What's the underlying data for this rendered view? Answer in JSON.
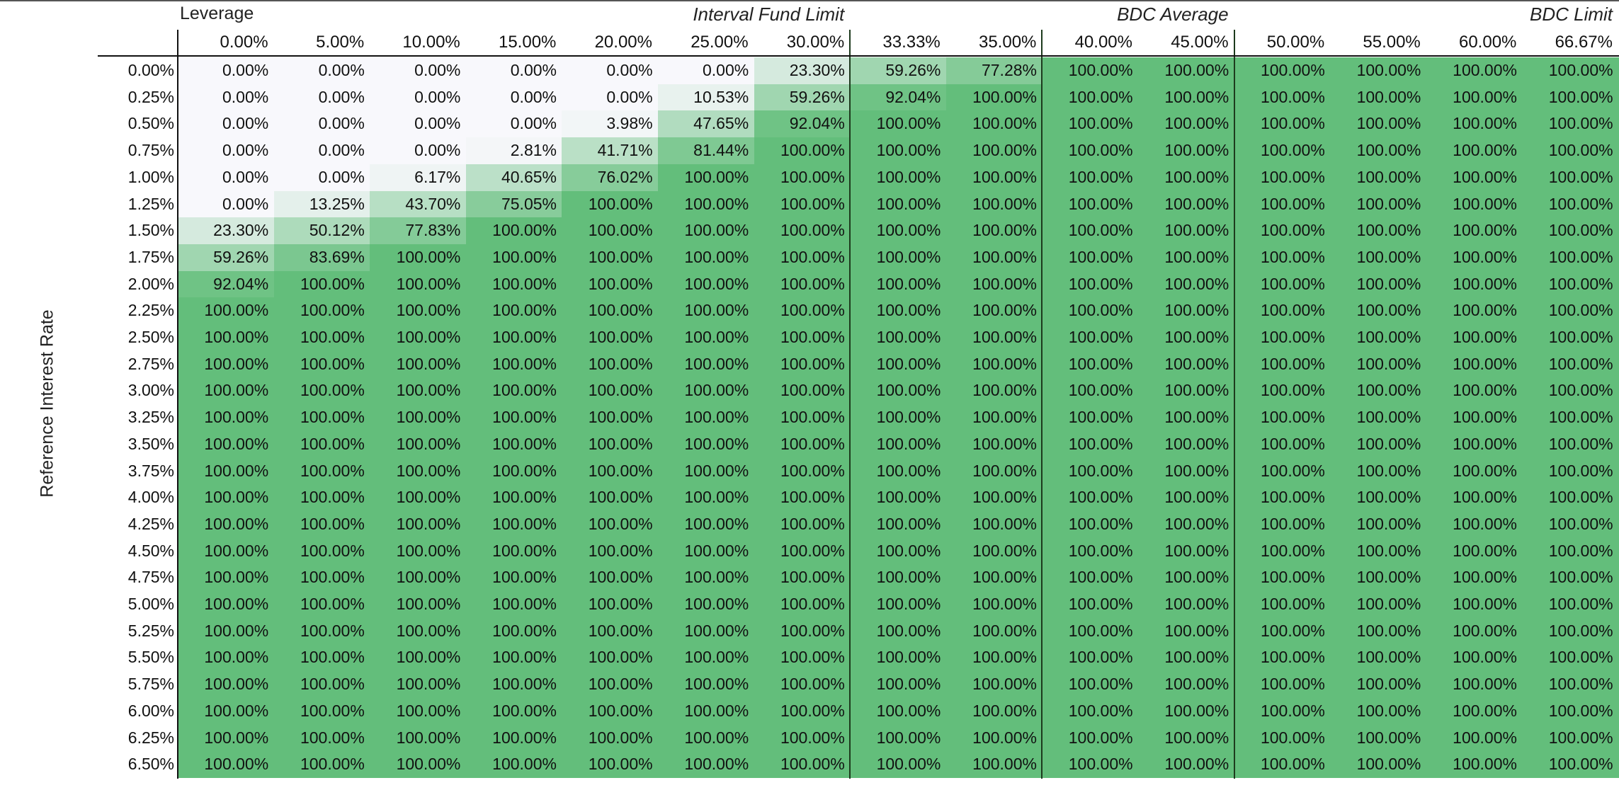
{
  "chart_data": {
    "type": "heatmap",
    "title": "",
    "xlabel": "Leverage",
    "ylabel": "Reference Interest Rate",
    "x_categories": [
      "0.00%",
      "5.00%",
      "10.00%",
      "15.00%",
      "20.00%",
      "25.00%",
      "30.00%",
      "33.33%",
      "35.00%",
      "40.00%",
      "45.00%",
      "50.00%",
      "55.00%",
      "60.00%",
      "66.67%"
    ],
    "y_categories": [
      "0.00%",
      "0.25%",
      "0.50%",
      "0.75%",
      "1.00%",
      "1.25%",
      "1.50%",
      "1.75%",
      "2.00%",
      "2.25%",
      "2.50%",
      "2.75%",
      "3.00%",
      "3.25%",
      "3.50%",
      "3.75%",
      "4.00%",
      "4.25%",
      "4.50%",
      "4.75%",
      "5.00%",
      "5.25%",
      "5.50%",
      "5.75%",
      "6.00%",
      "6.25%",
      "6.50%"
    ],
    "values": [
      [
        0.0,
        0.0,
        0.0,
        0.0,
        0.0,
        0.0,
        23.3,
        59.26,
        77.28,
        100.0,
        100.0,
        100.0,
        100.0,
        100.0,
        100.0
      ],
      [
        0.0,
        0.0,
        0.0,
        0.0,
        0.0,
        10.53,
        59.26,
        92.04,
        100.0,
        100.0,
        100.0,
        100.0,
        100.0,
        100.0,
        100.0
      ],
      [
        0.0,
        0.0,
        0.0,
        0.0,
        3.98,
        47.65,
        92.04,
        100.0,
        100.0,
        100.0,
        100.0,
        100.0,
        100.0,
        100.0,
        100.0
      ],
      [
        0.0,
        0.0,
        0.0,
        2.81,
        41.71,
        81.44,
        100.0,
        100.0,
        100.0,
        100.0,
        100.0,
        100.0,
        100.0,
        100.0,
        100.0
      ],
      [
        0.0,
        0.0,
        6.17,
        40.65,
        76.02,
        100.0,
        100.0,
        100.0,
        100.0,
        100.0,
        100.0,
        100.0,
        100.0,
        100.0,
        100.0
      ],
      [
        0.0,
        13.25,
        43.7,
        75.05,
        100.0,
        100.0,
        100.0,
        100.0,
        100.0,
        100.0,
        100.0,
        100.0,
        100.0,
        100.0,
        100.0
      ],
      [
        23.3,
        50.12,
        77.83,
        100.0,
        100.0,
        100.0,
        100.0,
        100.0,
        100.0,
        100.0,
        100.0,
        100.0,
        100.0,
        100.0,
        100.0
      ],
      [
        59.26,
        83.69,
        100.0,
        100.0,
        100.0,
        100.0,
        100.0,
        100.0,
        100.0,
        100.0,
        100.0,
        100.0,
        100.0,
        100.0,
        100.0
      ],
      [
        92.04,
        100.0,
        100.0,
        100.0,
        100.0,
        100.0,
        100.0,
        100.0,
        100.0,
        100.0,
        100.0,
        100.0,
        100.0,
        100.0,
        100.0
      ],
      [
        100.0,
        100.0,
        100.0,
        100.0,
        100.0,
        100.0,
        100.0,
        100.0,
        100.0,
        100.0,
        100.0,
        100.0,
        100.0,
        100.0,
        100.0
      ],
      [
        100.0,
        100.0,
        100.0,
        100.0,
        100.0,
        100.0,
        100.0,
        100.0,
        100.0,
        100.0,
        100.0,
        100.0,
        100.0,
        100.0,
        100.0
      ],
      [
        100.0,
        100.0,
        100.0,
        100.0,
        100.0,
        100.0,
        100.0,
        100.0,
        100.0,
        100.0,
        100.0,
        100.0,
        100.0,
        100.0,
        100.0
      ],
      [
        100.0,
        100.0,
        100.0,
        100.0,
        100.0,
        100.0,
        100.0,
        100.0,
        100.0,
        100.0,
        100.0,
        100.0,
        100.0,
        100.0,
        100.0
      ],
      [
        100.0,
        100.0,
        100.0,
        100.0,
        100.0,
        100.0,
        100.0,
        100.0,
        100.0,
        100.0,
        100.0,
        100.0,
        100.0,
        100.0,
        100.0
      ],
      [
        100.0,
        100.0,
        100.0,
        100.0,
        100.0,
        100.0,
        100.0,
        100.0,
        100.0,
        100.0,
        100.0,
        100.0,
        100.0,
        100.0,
        100.0
      ],
      [
        100.0,
        100.0,
        100.0,
        100.0,
        100.0,
        100.0,
        100.0,
        100.0,
        100.0,
        100.0,
        100.0,
        100.0,
        100.0,
        100.0,
        100.0
      ],
      [
        100.0,
        100.0,
        100.0,
        100.0,
        100.0,
        100.0,
        100.0,
        100.0,
        100.0,
        100.0,
        100.0,
        100.0,
        100.0,
        100.0,
        100.0
      ],
      [
        100.0,
        100.0,
        100.0,
        100.0,
        100.0,
        100.0,
        100.0,
        100.0,
        100.0,
        100.0,
        100.0,
        100.0,
        100.0,
        100.0,
        100.0
      ],
      [
        100.0,
        100.0,
        100.0,
        100.0,
        100.0,
        100.0,
        100.0,
        100.0,
        100.0,
        100.0,
        100.0,
        100.0,
        100.0,
        100.0,
        100.0
      ],
      [
        100.0,
        100.0,
        100.0,
        100.0,
        100.0,
        100.0,
        100.0,
        100.0,
        100.0,
        100.0,
        100.0,
        100.0,
        100.0,
        100.0,
        100.0
      ],
      [
        100.0,
        100.0,
        100.0,
        100.0,
        100.0,
        100.0,
        100.0,
        100.0,
        100.0,
        100.0,
        100.0,
        100.0,
        100.0,
        100.0,
        100.0
      ],
      [
        100.0,
        100.0,
        100.0,
        100.0,
        100.0,
        100.0,
        100.0,
        100.0,
        100.0,
        100.0,
        100.0,
        100.0,
        100.0,
        100.0,
        100.0
      ],
      [
        100.0,
        100.0,
        100.0,
        100.0,
        100.0,
        100.0,
        100.0,
        100.0,
        100.0,
        100.0,
        100.0,
        100.0,
        100.0,
        100.0,
        100.0
      ],
      [
        100.0,
        100.0,
        100.0,
        100.0,
        100.0,
        100.0,
        100.0,
        100.0,
        100.0,
        100.0,
        100.0,
        100.0,
        100.0,
        100.0,
        100.0
      ],
      [
        100.0,
        100.0,
        100.0,
        100.0,
        100.0,
        100.0,
        100.0,
        100.0,
        100.0,
        100.0,
        100.0,
        100.0,
        100.0,
        100.0,
        100.0
      ],
      [
        100.0,
        100.0,
        100.0,
        100.0,
        100.0,
        100.0,
        100.0,
        100.0,
        100.0,
        100.0,
        100.0,
        100.0,
        100.0,
        100.0,
        100.0
      ],
      [
        100.0,
        100.0,
        100.0,
        100.0,
        100.0,
        100.0,
        100.0,
        100.0,
        100.0,
        100.0,
        100.0,
        100.0,
        100.0,
        100.0,
        100.0
      ]
    ],
    "value_format": "percent_2dp",
    "annotations": [
      {
        "label": "Interval Fund Limit",
        "after_category": "30.00%"
      },
      {
        "label": "BDC Average",
        "after_category": "45.00%"
      },
      {
        "label": "BDC Limit",
        "after_category": "66.67%"
      }
    ],
    "color_scale": {
      "low": "#f8f8fc",
      "high": "#63be7b"
    },
    "legend": "none",
    "grid": false
  }
}
